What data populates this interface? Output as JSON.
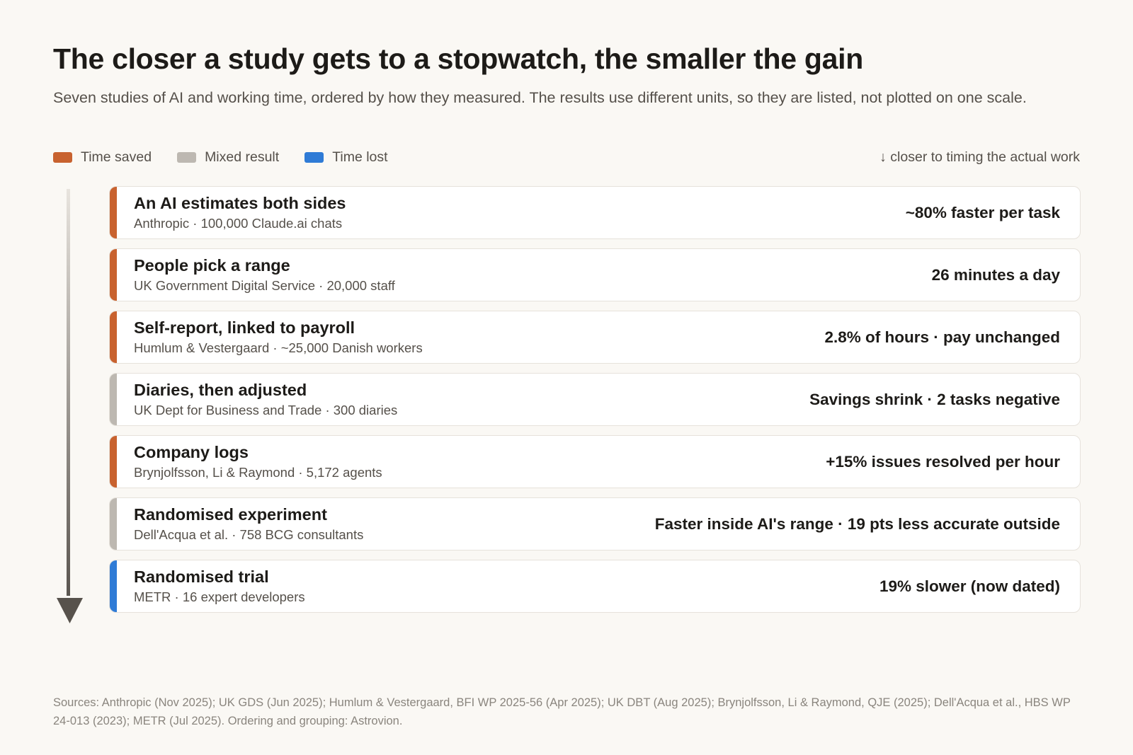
{
  "title": "The closer a study gets to a stopwatch, the smaller the gain",
  "subtitle": "Seven studies of AI and working time, ordered by how they measured. The results use different units, so they are listed, not plotted on one scale.",
  "legend": {
    "saved": {
      "label": "Time saved",
      "color": "#c8622f"
    },
    "mixed": {
      "label": "Mixed result",
      "color": "#bdb8b1"
    },
    "lost": {
      "label": "Time lost",
      "color": "#2f7bd6"
    }
  },
  "direction_label": "↓ closer to timing the actual work",
  "studies": [
    {
      "method": "An AI estimates both sides",
      "source": "Anthropic · 100,000 Claude.ai chats",
      "result": "~80% faster per task",
      "category": "saved"
    },
    {
      "method": "People pick a range",
      "source": "UK Government Digital Service · 20,000 staff",
      "result": "26 minutes a day",
      "category": "saved"
    },
    {
      "method": "Self-report, linked to payroll",
      "source": "Humlum & Vestergaard · ~25,000 Danish workers",
      "result": "2.8% of hours · pay unchanged",
      "category": "saved"
    },
    {
      "method": "Diaries, then adjusted",
      "source": "UK Dept for Business and Trade · 300 diaries",
      "result": "Savings shrink · 2 tasks negative",
      "category": "mixed"
    },
    {
      "method": "Company logs",
      "source": "Brynjolfsson, Li & Raymond · 5,172 agents",
      "result": "+15% issues resolved per hour",
      "category": "saved"
    },
    {
      "method": "Randomised experiment",
      "source": "Dell'Acqua et al. · 758 BCG consultants",
      "result": "Faster inside AI's range · 19 pts less accurate outside",
      "category": "mixed"
    },
    {
      "method": "Randomised trial",
      "source": "METR · 16 expert developers",
      "result": "19% slower (now dated)",
      "category": "lost"
    }
  ],
  "footnote": "Sources: Anthropic (Nov 2025); UK GDS (Jun 2025); Humlum & Vestergaard, BFI WP 2025-56 (Apr 2025); UK DBT (Aug 2025); Brynjolfsson, Li & Raymond, QJE (2025); Dell'Acqua et al., HBS WP 24-013 (2023); METR (Jul 2025). Ordering and grouping: Astrovion."
}
